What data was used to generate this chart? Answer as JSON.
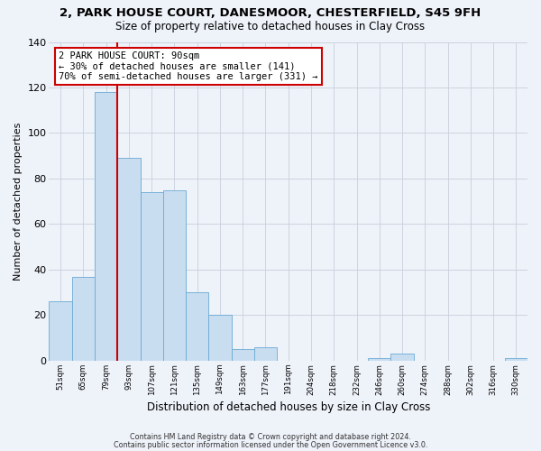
{
  "title": "2, PARK HOUSE COURT, DANESMOOR, CHESTERFIELD, S45 9FH",
  "subtitle": "Size of property relative to detached houses in Clay Cross",
  "xlabel": "Distribution of detached houses by size in Clay Cross",
  "ylabel": "Number of detached properties",
  "bar_color": "#c9ddf0",
  "bar_edge_color": "#6aaad4",
  "bg_color": "#eef2f9",
  "grid_color": "#c8d0dc",
  "bin_labels": [
    "51sqm",
    "65sqm",
    "79sqm",
    "93sqm",
    "107sqm",
    "121sqm",
    "135sqm",
    "149sqm",
    "163sqm",
    "177sqm",
    "191sqm",
    "204sqm",
    "218sqm",
    "232sqm",
    "246sqm",
    "260sqm",
    "274sqm",
    "288sqm",
    "302sqm",
    "316sqm",
    "330sqm"
  ],
  "bar_heights": [
    26,
    37,
    118,
    89,
    74,
    75,
    30,
    20,
    5,
    6,
    0,
    0,
    0,
    0,
    1,
    3,
    0,
    0,
    0,
    0,
    1
  ],
  "vline_color": "#cc0000",
  "annotation_title": "2 PARK HOUSE COURT: 90sqm",
  "annotation_line1": "← 30% of detached houses are smaller (141)",
  "annotation_line2": "70% of semi-detached houses are larger (331) →",
  "annotation_box_color": "#ffffff",
  "annotation_box_edge": "#cc0000",
  "ylim": [
    0,
    140
  ],
  "yticks": [
    0,
    20,
    40,
    60,
    80,
    100,
    120,
    140
  ],
  "footer1": "Contains HM Land Registry data © Crown copyright and database right 2024.",
  "footer2": "Contains public sector information licensed under the Open Government Licence v3.0."
}
